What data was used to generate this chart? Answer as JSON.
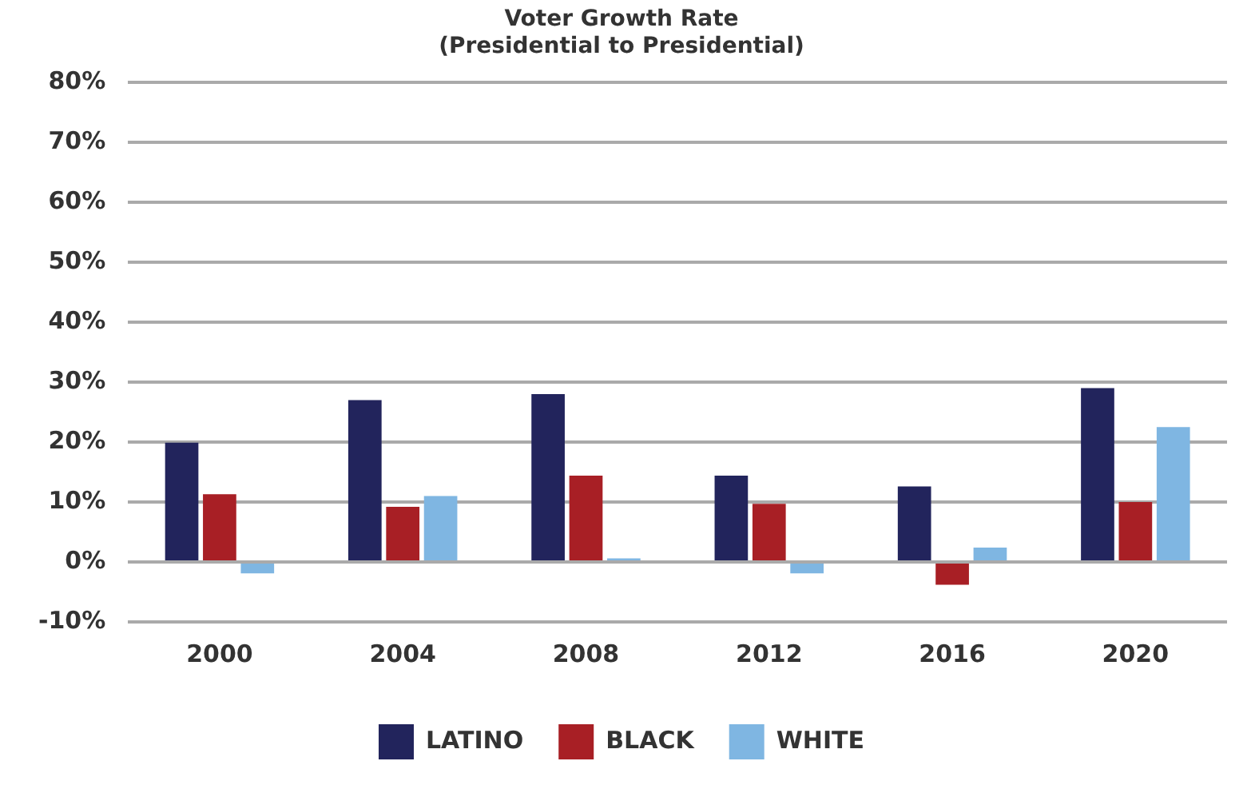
{
  "chart_data": {
    "type": "bar",
    "title": [
      "Voter Growth Rate",
      "(Presidential to Presidential)"
    ],
    "categories": [
      "2000",
      "2004",
      "2008",
      "2012",
      "2016",
      "2020"
    ],
    "series": [
      {
        "name": "LATINO",
        "color": "#22245c",
        "values": [
          19.9,
          27.0,
          28.0,
          14.4,
          12.6,
          29.0
        ]
      },
      {
        "name": "BLACK",
        "color": "#a81f25",
        "values": [
          11.3,
          9.2,
          14.4,
          9.7,
          -3.8,
          10.0
        ]
      },
      {
        "name": "WHITE",
        "color": "#7fb6e2",
        "values": [
          -1.9,
          11.0,
          0.6,
          -1.9,
          2.4,
          22.5
        ]
      }
    ],
    "ylim": [
      -10,
      80
    ],
    "yticks": [
      {
        "value": -10,
        "label": "-10%"
      },
      {
        "value": 0,
        "label": "0%"
      },
      {
        "value": 10,
        "label": "10%"
      },
      {
        "value": 20,
        "label": "20%"
      },
      {
        "value": 30,
        "label": "30%"
      },
      {
        "value": 40,
        "label": "40%"
      },
      {
        "value": 50,
        "label": "50%"
      },
      {
        "value": 60,
        "label": "60%"
      },
      {
        "value": 70,
        "label": "70%"
      },
      {
        "value": 80,
        "label": "80%"
      }
    ],
    "grid": "y",
    "legend": "bottom"
  }
}
